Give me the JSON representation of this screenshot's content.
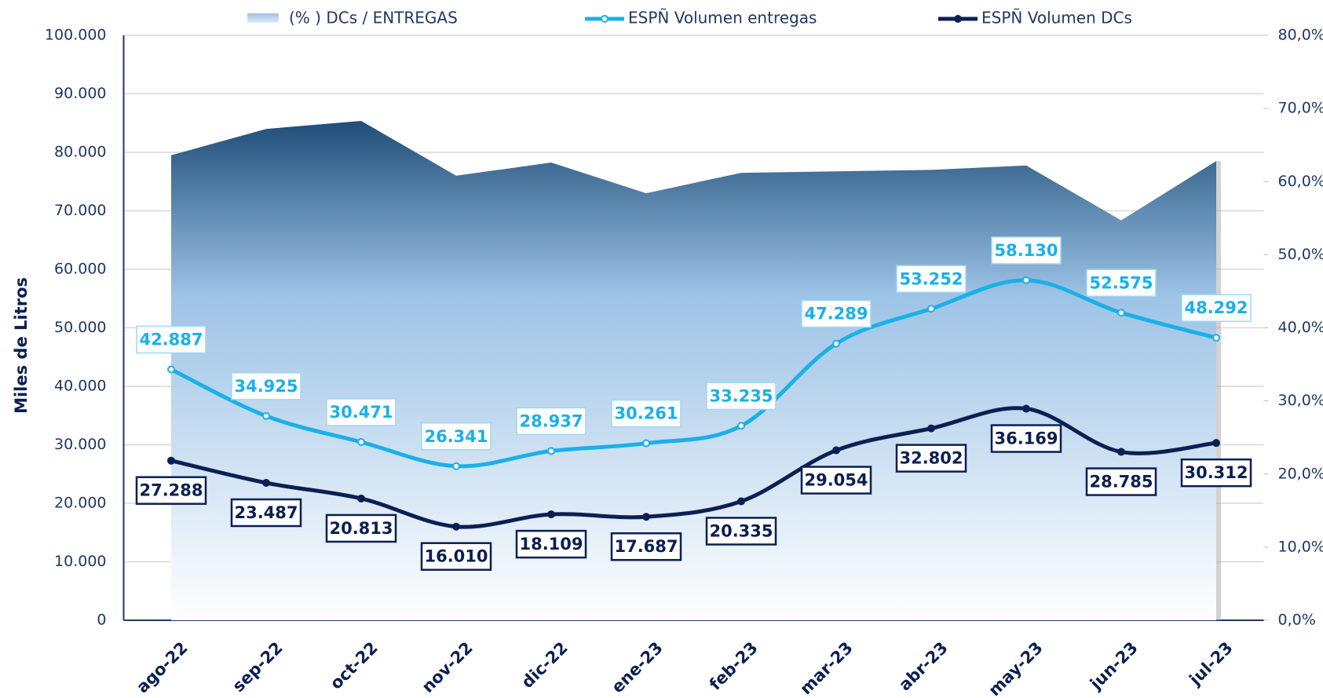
{
  "chart_data": {
    "type": "line",
    "y_label": "Miles de Litros",
    "categories": [
      "ago-22",
      "sep-22",
      "oct-22",
      "nov-22",
      "dic-22",
      "ene-23",
      "feb-23",
      "mar-23",
      "abr-23",
      "may-23",
      "jun-23",
      "jul-23"
    ],
    "series": [
      {
        "name": "(% ) DCs / ENTREGAS",
        "type": "area",
        "axis": "y2",
        "color": "#1f4e79",
        "values": [
          63.6,
          67.2,
          68.3,
          60.8,
          62.6,
          58.4,
          61.2,
          61.4,
          61.6,
          62.2,
          54.7,
          62.8
        ]
      },
      {
        "name": "ESPÑ Volumen entregas",
        "color": "#1ab0e8",
        "values": [
          42887,
          34925,
          30471,
          26341,
          28937,
          30261,
          33235,
          47289,
          53252,
          58130,
          52575,
          48292
        ],
        "value_labels": [
          "42.887",
          "34.925",
          "30.471",
          "26.341",
          "28.937",
          "30.261",
          "33.235",
          "47.289",
          "53.252",
          "58.130",
          "52.575",
          "48.292"
        ]
      },
      {
        "name": "ESPÑ Volumen DCs",
        "color": "#0b1f52",
        "values": [
          27288,
          23487,
          20813,
          16010,
          18109,
          17687,
          20335,
          29054,
          32802,
          36169,
          28785,
          30312
        ],
        "value_labels": [
          "27.288",
          "23.487",
          "20.813",
          "16.010",
          "18.109",
          "17.687",
          "20.335",
          "29.054",
          "32.802",
          "36.169",
          "28.785",
          "30.312"
        ]
      }
    ],
    "ylim": [
      0,
      100000
    ],
    "yticks": [
      0,
      {
        "value": 10000,
        "label": "10.000"
      },
      {
        "value": 20000,
        "label": "20.000"
      },
      {
        "value": 30000,
        "label": "30.000"
      },
      {
        "value": 40000,
        "label": "40.000"
      },
      {
        "value": 50000,
        "label": "50.000"
      },
      {
        "value": 60000,
        "label": "60.000"
      },
      {
        "value": 70000,
        "label": "70.000"
      },
      {
        "value": 80000,
        "label": "80.000"
      },
      {
        "value": 90000,
        "label": "90.000"
      },
      {
        "value": 100000,
        "label": "100.000"
      }
    ],
    "y2lim": [
      0,
      80
    ],
    "y2ticks": [
      {
        "value": 0,
        "label": "0,0%"
      },
      {
        "value": 10,
        "label": "10,0%"
      },
      {
        "value": 20,
        "label": "20,0%"
      },
      {
        "value": 30,
        "label": "30,0%"
      },
      {
        "value": 40,
        "label": "40,0%"
      },
      {
        "value": 50,
        "label": "50,0%"
      },
      {
        "value": 60,
        "label": "60,0%"
      },
      {
        "value": 70,
        "label": "70,0%"
      },
      {
        "value": 80,
        "label": "80,0%"
      }
    ],
    "grid": true
  }
}
